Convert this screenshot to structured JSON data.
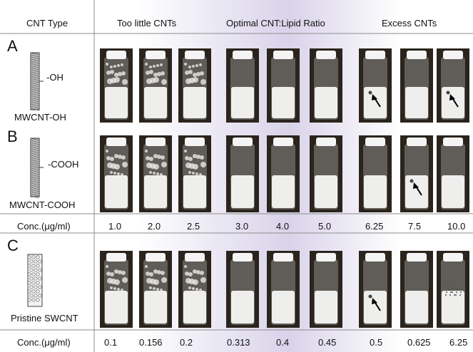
{
  "header": {
    "cnt_type": "CNT Type",
    "too_little": "Too little CNTs",
    "optimal": "Optimal CNT:Lipid Ratio",
    "excess": "Excess CNTs"
  },
  "rows": [
    {
      "panel": "A",
      "group_label": "-OH",
      "name": "MWCNT-OH",
      "tube": "multi-wall",
      "vials": [
        {
          "mix": "clumpy"
        },
        {
          "mix": "clumpy"
        },
        {
          "mix": "clumpy"
        },
        {
          "mix": "smooth"
        },
        {
          "mix": "smooth"
        },
        {
          "mix": "smooth"
        },
        {
          "mix": "arrow"
        },
        {
          "mix": "plain"
        },
        {
          "mix": "arrow"
        }
      ]
    },
    {
      "panel": "B",
      "group_label": "-COOH",
      "name": "MWCNT-COOH",
      "tube": "multi-wall",
      "vials": [
        {
          "mix": "clumpy"
        },
        {
          "mix": "clumpy"
        },
        {
          "mix": "clumpy"
        },
        {
          "mix": "smooth"
        },
        {
          "mix": "smooth"
        },
        {
          "mix": "smooth"
        },
        {
          "mix": "plain"
        },
        {
          "mix": "arrow"
        },
        {
          "mix": "plain"
        }
      ]
    },
    {
      "panel": "C",
      "group_label": "",
      "name": "Pristine SWCNT",
      "tube": "single-wall",
      "vials": [
        {
          "mix": "clumpy"
        },
        {
          "mix": "clumpy"
        },
        {
          "mix": "clumpy"
        },
        {
          "mix": "smooth"
        },
        {
          "mix": "smooth"
        },
        {
          "mix": "smooth"
        },
        {
          "mix": "arrow"
        },
        {
          "mix": "plain"
        },
        {
          "mix": "specks"
        }
      ]
    }
  ],
  "conc_rows": [
    {
      "label": "Conc.(μg/ml)",
      "values": [
        "1.0",
        "2.0",
        "2.5",
        "3.0",
        "4.0",
        "5.0",
        "6.25",
        "7.5",
        "10.0"
      ]
    },
    {
      "label": "Conc.(μg/ml)",
      "values": [
        "0.1",
        "0.156",
        "0.2",
        "0.313",
        "0.4",
        "0.45",
        "0.5",
        "0.625",
        "6.25"
      ]
    }
  ],
  "colors": {
    "gradient_mid": "#d9d3ea",
    "vial_backdrop": "#2a241d",
    "suspension": "#eeeeed",
    "cap": "#f4f4f4",
    "grid_line": "#8c8c8c"
  }
}
